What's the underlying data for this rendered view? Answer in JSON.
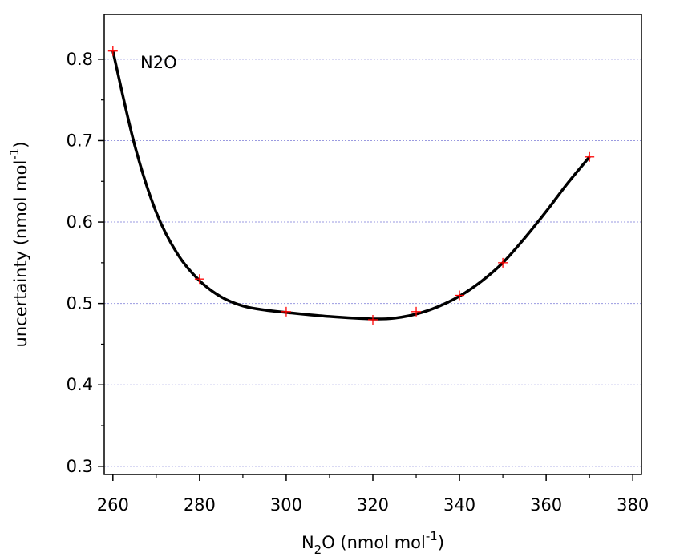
{
  "chart_data": {
    "type": "scatter",
    "annotation": "N2O",
    "xlabel": {
      "prefix": "N",
      "sub": "2",
      "mid": "O (nmol mol",
      "sup": "-1",
      "suffix": ")"
    },
    "ylabel": {
      "prefix": "uncertainty (nmol mol",
      "sup": "-1",
      "suffix": ")"
    },
    "xlim": [
      258,
      382
    ],
    "ylim": [
      0.29,
      0.855
    ],
    "x_ticks": [
      260,
      280,
      300,
      320,
      340,
      360,
      380
    ],
    "x_tick_labels": [
      "260",
      "280",
      "300",
      "320",
      "340",
      "360",
      "380"
    ],
    "y_ticks": [
      0.3,
      0.4,
      0.5,
      0.6,
      0.7,
      0.8
    ],
    "y_tick_labels": [
      "0.3",
      "0.4",
      "0.5",
      "0.6",
      "0.7",
      "0.8"
    ],
    "grid": "horizontal dotted",
    "series": [
      {
        "style": "markers",
        "marker": "plus",
        "color": "#ff0000",
        "x": [
          260,
          280,
          300,
          320,
          330,
          340,
          350,
          370
        ],
        "y": [
          0.81,
          0.53,
          0.49,
          0.48,
          0.49,
          0.51,
          0.55,
          0.68
        ]
      },
      {
        "style": "line",
        "color": "#000000",
        "x": [
          260,
          265,
          270,
          275,
          280,
          285,
          290,
          295,
          300,
          310,
          320,
          325,
          330,
          335,
          340,
          345,
          350,
          355,
          360,
          365,
          370
        ],
        "y": [
          0.81,
          0.695,
          0.612,
          0.56,
          0.528,
          0.508,
          0.497,
          0.492,
          0.489,
          0.484,
          0.481,
          0.482,
          0.487,
          0.496,
          0.509,
          0.527,
          0.55,
          0.58,
          0.613,
          0.648,
          0.68
        ]
      }
    ]
  },
  "colors": {
    "axis": "#000000",
    "grid": "#9a9ae0",
    "marker": "#ff0000",
    "curve": "#000000"
  }
}
